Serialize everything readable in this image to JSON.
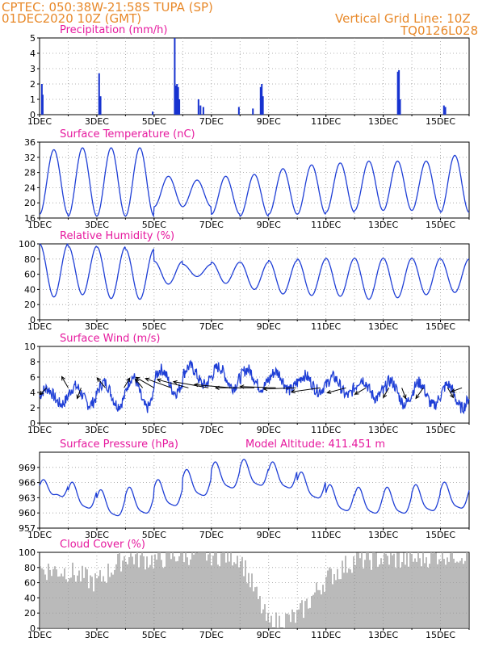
{
  "header": {
    "line1": "CPTEC:   050:38W-21:58S   TUPA (SP)",
    "line2": "01DEC2020 10Z (GMT)",
    "grid_note": "Vertical Grid Line: 10Z",
    "code": "TQ0126L028"
  },
  "colors": {
    "header": "#e8892a",
    "panel_title": "#e6199e",
    "series": "#1f3fd6",
    "bars": "#1733d0",
    "cloud": "#a9a9a9",
    "grid": "#9a9a9a",
    "arrow": "#000000"
  },
  "x_axis": {
    "labels": [
      "1DEC",
      "3DEC",
      "5DEC",
      "7DEC",
      "9DEC",
      "11DEC",
      "13DEC",
      "15DEC"
    ],
    "start_day": 1,
    "end_day": 16
  },
  "chart_data": [
    {
      "type": "bar",
      "title": "Precipitation (mm/h)",
      "ylim": [
        0,
        5
      ],
      "yticks": [
        "0",
        "1",
        "2",
        "3",
        "4",
        "5"
      ],
      "x": [
        1.08,
        1.11,
        3.08,
        3.13,
        4.95,
        5.72,
        5.76,
        5.8,
        5.84,
        5.88,
        6.55,
        6.62,
        6.72,
        7.96,
        8.45,
        8.72,
        8.76,
        8.8,
        13.51,
        13.55,
        13.59,
        15.12,
        15.17
      ],
      "values": [
        2.0,
        1.3,
        2.7,
        1.2,
        0.2,
        5.0,
        1.9,
        2.0,
        1.8,
        1.0,
        1.0,
        0.6,
        0.5,
        0.5,
        0.4,
        1.8,
        2.0,
        1.2,
        2.8,
        2.9,
        1.0,
        0.6,
        0.5
      ]
    },
    {
      "type": "line",
      "title": "Surface Temperature (nC)",
      "ylim": [
        16,
        36
      ],
      "yticks": [
        "16",
        "20",
        "24",
        "28",
        "32",
        "36"
      ],
      "mean": [
        25.5,
        25.5,
        25.5,
        25.5,
        23,
        22.5,
        22,
        22,
        23,
        23.5,
        24,
        24.5,
        24.5,
        24.5,
        25
      ],
      "amplitude": [
        8.5,
        9,
        9,
        9,
        4,
        3.5,
        5,
        5.5,
        6,
        6.5,
        6.5,
        6.5,
        6.5,
        6.5,
        7.5
      ]
    },
    {
      "type": "line",
      "title": "Relative Humidity (%)",
      "ylim": [
        0,
        100
      ],
      "yticks": [
        "0",
        "20",
        "40",
        "60",
        "80",
        "100"
      ],
      "mean": [
        65,
        65,
        62,
        60,
        62,
        65,
        62,
        58,
        56,
        56,
        56,
        54,
        55,
        57,
        58
      ],
      "amplitude": [
        35,
        32,
        34,
        33,
        15,
        8,
        14,
        18,
        22,
        24,
        25,
        27,
        26,
        24,
        22
      ]
    },
    {
      "type": "line",
      "title": "Surface Wind (m/s)",
      "ylim": [
        0,
        10
      ],
      "yticks": [
        "0",
        "2",
        "4",
        "6",
        "8",
        "10"
      ],
      "mean": [
        3.5,
        3.6,
        3.8,
        4.0,
        5.5,
        6.2,
        6.0,
        5.8,
        5.5,
        5.2,
        4.8,
        4.5,
        4.0,
        3.8,
        3.5
      ],
      "amplitude": [
        1.0,
        1.2,
        1.5,
        2.0,
        1.5,
        1.2,
        1.3,
        1.2,
        1.2,
        1.0,
        1.2,
        1.2,
        1.5,
        1.5,
        1.5
      ],
      "vectors": {
        "x": [
          1.25,
          2.0,
          2.45,
          3.3,
          3.95,
          4.6,
          5.0,
          5.6,
          6.2,
          6.9,
          7.7,
          8.5,
          9.25,
          9.95,
          10.8,
          11.7,
          12.4,
          13.2,
          13.65,
          14.4,
          15.25,
          15.75
        ],
        "dir": [
          225,
          330,
          200,
          320,
          30,
          320,
          300,
          290,
          285,
          280,
          275,
          270,
          272,
          268,
          262,
          255,
          240,
          210,
          160,
          215,
          150,
          250
        ],
        "len": [
          12,
          16,
          14,
          16,
          14,
          14,
          26,
          34,
          40,
          44,
          46,
          48,
          44,
          40,
          36,
          24,
          16,
          14,
          14,
          16,
          14,
          14
        ]
      }
    },
    {
      "type": "line",
      "title": "Surface Pressure (hPa)",
      "annotation": "Model Altitude: 411.451 m",
      "ylim": [
        957,
        972
      ],
      "yticks": [
        "957",
        "960",
        "963",
        "966",
        "969"
      ],
      "mean": [
        964.5,
        963.0,
        961.5,
        962.0,
        963.5,
        965.5,
        967.0,
        967.5,
        967.0,
        965.0,
        962.5,
        962.0,
        962.0,
        962.5,
        963.0
      ],
      "amplitude": [
        1.5,
        2.5,
        2.5,
        2.5,
        2.5,
        2.5,
        2.5,
        2.5,
        2.5,
        2.5,
        2.5,
        2.5,
        2.5,
        2.5,
        2.5
      ]
    },
    {
      "type": "area",
      "title": "Cloud Cover (%)",
      "ylim": [
        0,
        100
      ],
      "yticks": [
        "0",
        "20",
        "40",
        "60",
        "80",
        "100"
      ],
      "base": [
        78,
        75,
        60,
        95,
        90,
        98,
        97,
        95,
        5,
        15,
        65,
        90,
        92,
        90,
        98
      ]
    }
  ]
}
